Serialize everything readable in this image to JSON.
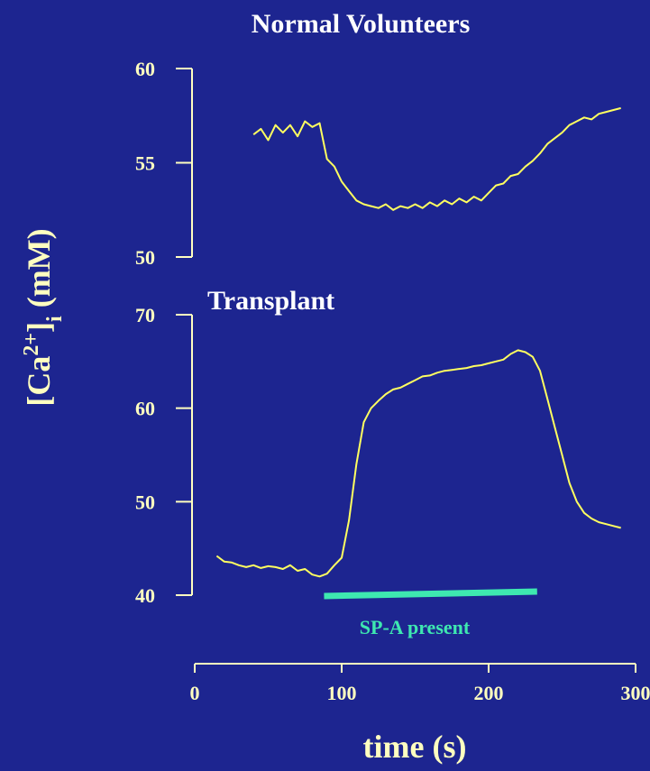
{
  "chart_data": [
    {
      "type": "line",
      "title": "Normal Volunteers",
      "ylim": [
        50,
        60
      ],
      "yticks": [
        "50",
        "55",
        "60"
      ],
      "xlim": [
        0,
        300
      ],
      "series": [
        {
          "x": [
            40,
            45,
            50,
            55,
            60,
            65,
            70,
            75,
            80,
            85,
            90,
            95,
            100,
            105,
            110,
            115,
            120,
            125,
            130,
            135,
            140,
            145,
            150,
            155,
            160,
            165,
            170,
            175,
            180,
            185,
            190,
            195,
            200,
            205,
            210,
            215,
            220,
            225,
            230,
            235,
            240,
            245,
            250,
            255,
            260,
            265,
            270,
            275,
            280,
            285,
            290
          ],
          "y": [
            56.5,
            56.8,
            56.2,
            57.0,
            56.6,
            57.0,
            56.4,
            57.2,
            56.9,
            57.1,
            55.2,
            54.8,
            54.0,
            53.5,
            53.0,
            52.8,
            52.7,
            52.6,
            52.8,
            52.5,
            52.7,
            52.6,
            52.8,
            52.6,
            52.9,
            52.7,
            53.0,
            52.8,
            53.1,
            52.9,
            53.2,
            53.0,
            53.4,
            53.8,
            53.9,
            54.3,
            54.4,
            54.8,
            55.1,
            55.5,
            56.0,
            56.3,
            56.6,
            57.0,
            57.2,
            57.4,
            57.3,
            57.6,
            57.7,
            57.8,
            57.9
          ]
        }
      ]
    },
    {
      "type": "line",
      "title": "Transplant",
      "ylim": [
        40,
        70
      ],
      "yticks": [
        "40",
        "50",
        "60",
        "70"
      ],
      "xlim": [
        0,
        300
      ],
      "series": [
        {
          "x": [
            15,
            20,
            25,
            30,
            35,
            40,
            45,
            50,
            55,
            60,
            65,
            70,
            75,
            80,
            85,
            90,
            95,
            100,
            105,
            110,
            115,
            120,
            125,
            130,
            135,
            140,
            145,
            150,
            155,
            160,
            165,
            170,
            175,
            180,
            185,
            190,
            195,
            200,
            205,
            210,
            215,
            220,
            225,
            230,
            235,
            240,
            245,
            250,
            255,
            260,
            265,
            270,
            275,
            280,
            285,
            290
          ],
          "y": [
            44.2,
            43.6,
            43.5,
            43.2,
            43.0,
            43.2,
            42.9,
            43.1,
            43.0,
            42.8,
            43.2,
            42.6,
            42.8,
            42.2,
            42.0,
            42.3,
            43.2,
            44.0,
            48.0,
            54.0,
            58.5,
            60.0,
            60.8,
            61.5,
            62.0,
            62.2,
            62.6,
            63.0,
            63.4,
            63.5,
            63.8,
            64.0,
            64.1,
            64.2,
            64.3,
            64.5,
            64.6,
            64.8,
            65.0,
            65.2,
            65.8,
            66.2,
            66.0,
            65.5,
            64.0,
            61.0,
            58.0,
            55.0,
            52.0,
            50.0,
            48.8,
            48.2,
            47.8,
            47.6,
            47.4,
            47.2
          ]
        }
      ]
    }
  ],
  "x_axis": {
    "label": "time (s)",
    "ticks": [
      "0",
      "100",
      "200",
      "300"
    ],
    "range": [
      0,
      300
    ]
  },
  "y_axis": {
    "label_base": "[Ca",
    "label_sup": "2+",
    "label_mid": "]",
    "label_sub": "i",
    "label_tail": " (mM)"
  },
  "annotation": {
    "text": "SP-A present",
    "x_start": 88,
    "x_end": 233,
    "color": "#3ee8b0"
  },
  "colors": {
    "background": "#1d2590",
    "trace": "#ffff60",
    "axis": "#ffffc0",
    "title": "#ffffff"
  }
}
